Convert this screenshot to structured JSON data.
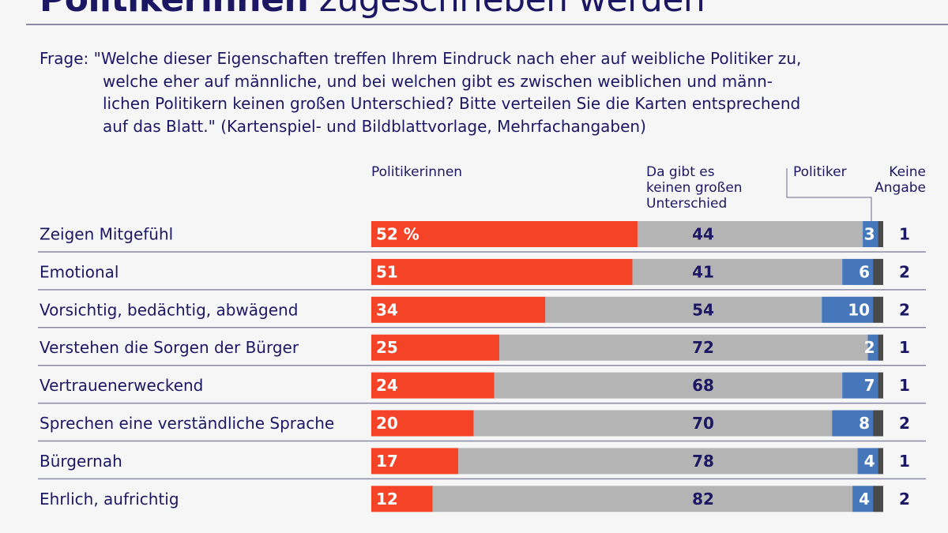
{
  "title": {
    "bold": "Politikerinnen",
    "light": "zugeschrieben werden"
  },
  "question": [
    "Frage: \"Welche dieser Eigenschaften treffen Ihrem Eindruck nach eher auf weibliche Politiker zu,",
    "welche eher auf männliche, und bei welchen gibt es zwischen weiblichen und männ-",
    "lichen Politikern keinen großen Unterschied? Bitte verteilen Sie die Karten entsprechend",
    "auf das Blatt.\" (Kartenspiel- und Bildblattvorlage, Mehrfachangaben)"
  ],
  "chart_data": {
    "type": "bar",
    "stacked": true,
    "orientation": "horizontal",
    "unit": "%",
    "categories": [
      "Zeigen Mitgefühl",
      "Emotional",
      "Vorsichtig, bedächtig, abwägend",
      "Verstehen die Sorgen der Bürger",
      "Vertrauenerweckend",
      "Sprechen eine verständliche Sprache",
      "Bürgernah",
      "Ehrlich, aufrichtig"
    ],
    "series": [
      {
        "name": "Politikerinnen",
        "color": "#f44326",
        "values": [
          52,
          51,
          34,
          25,
          24,
          20,
          17,
          12
        ]
      },
      {
        "name": "Da gibt es keinen großen Unterschied",
        "color": "#b4b4b4",
        "values": [
          44,
          41,
          54,
          72,
          68,
          70,
          78,
          82
        ]
      },
      {
        "name": "Politiker",
        "color": "#4677bb",
        "values": [
          3,
          6,
          10,
          2,
          7,
          8,
          4,
          4
        ]
      },
      {
        "name": "Keine Angabe",
        "color": "#4a4a4a",
        "values": [
          1,
          2,
          2,
          1,
          1,
          2,
          1,
          2
        ]
      }
    ],
    "first_label_suffix": " %",
    "xlim": [
      0,
      100
    ]
  },
  "headers": {
    "politikerinnen": "Politikerinnen",
    "unterschied": [
      "Da gibt es",
      "keinen großen",
      "Unterschied"
    ],
    "politiker": "Politiker",
    "keine_angabe": [
      "Keine",
      "Angabe"
    ]
  }
}
